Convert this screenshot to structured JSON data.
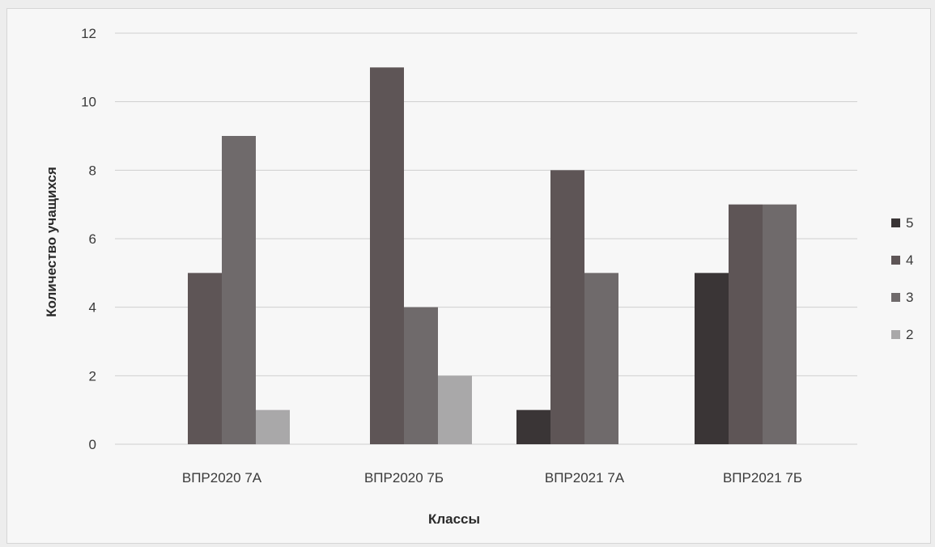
{
  "chart_data": {
    "type": "bar",
    "categories": [
      "ВПР2020 7А",
      "ВПР2020 7Б",
      "ВПР2021 7А",
      "ВПР2021 7Б"
    ],
    "series": [
      {
        "name": "5",
        "values": [
          0,
          0,
          1,
          5
        ],
        "color": "#3a3536"
      },
      {
        "name": "4",
        "values": [
          5,
          11,
          8,
          7
        ],
        "color": "#5e5556"
      },
      {
        "name": "3",
        "values": [
          9,
          4,
          5,
          7
        ],
        "color": "#6f6a6b"
      },
      {
        "name": "2",
        "values": [
          1,
          2,
          0,
          0
        ],
        "color": "#a9a8a9"
      }
    ],
    "title": "",
    "xlabel": "Классы",
    "ylabel": "Количество учащихся",
    "ylim": [
      0,
      12
    ],
    "yticks": [
      0,
      2,
      4,
      6,
      8,
      10,
      12
    ],
    "grid": true,
    "legend_position": "right"
  }
}
